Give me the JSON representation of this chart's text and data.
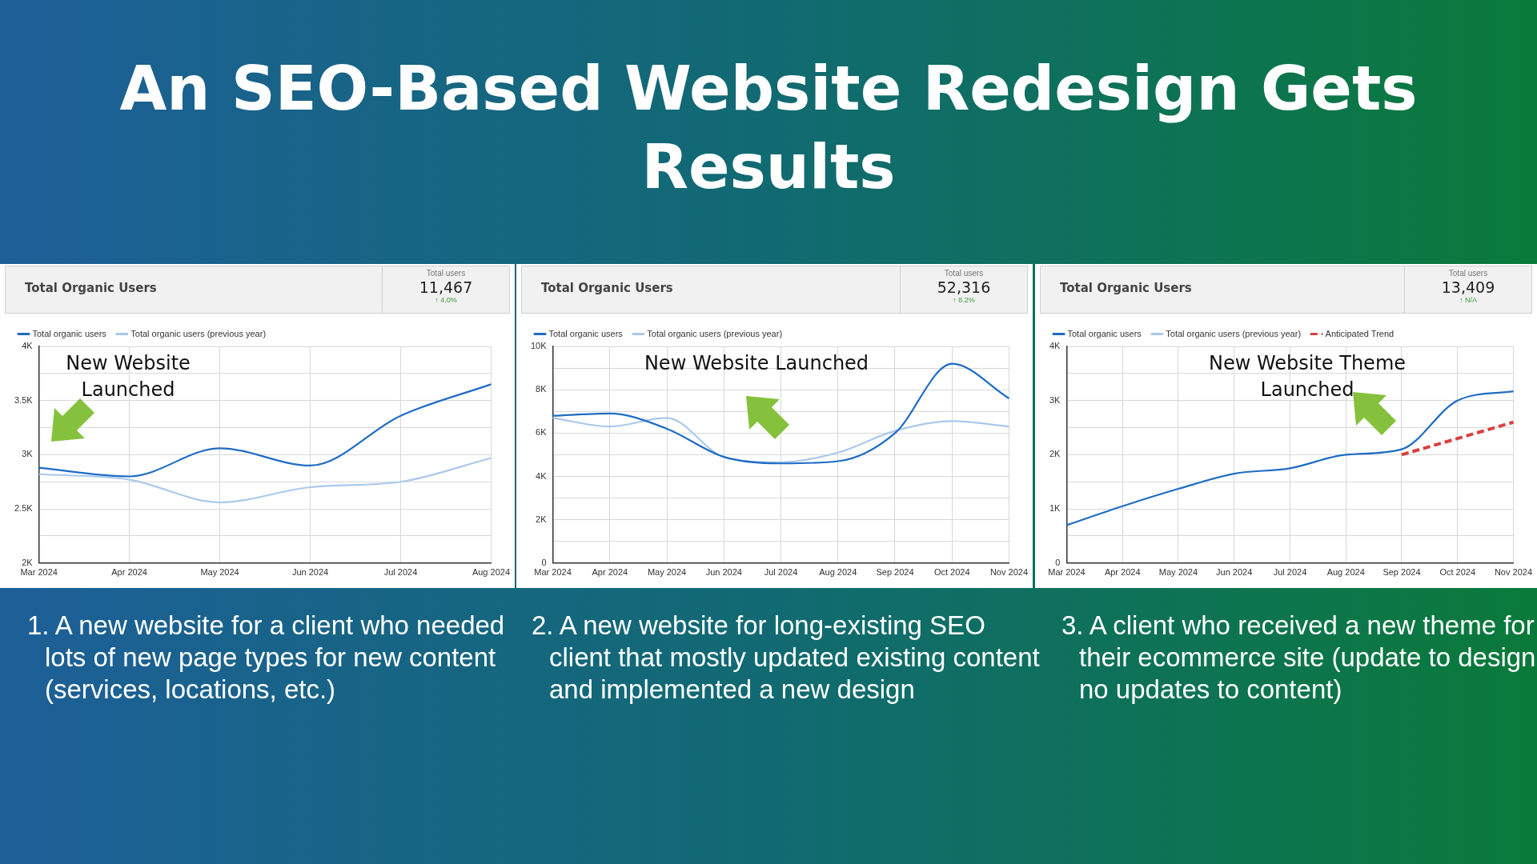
{
  "chart_data": [
    {
      "type": "line",
      "title": "An SEO-Based Website Redesign Gets Results",
      "subtitle": "Total Organic Users",
      "categories": [
        "Mar 2024",
        "Apr 2024",
        "May 2024",
        "Jun 2024",
        "Jul 2024",
        "Aug 2024"
      ],
      "series": [
        {
          "name": "Total organic users",
          "color": "#1f6cc4",
          "values": [
            2880,
            2800,
            3060,
            2900,
            3360,
            3650
          ]
        },
        {
          "name": "Total organic users (previous year)",
          "color": "#a9c9ec",
          "values": [
            2820,
            2770,
            2560,
            2700,
            2750,
            2970
          ]
        }
      ],
      "ylim": [
        2000,
        4000
      ],
      "yticks": [
        {
          "value": 2000,
          "label": "2K"
        },
        {
          "value": 2250,
          "label": null
        },
        {
          "value": 2500,
          "label": "2.5K"
        },
        {
          "value": 2750,
          "label": null
        },
        {
          "value": 3000,
          "label": "3K"
        },
        {
          "value": 3250,
          "label": null
        },
        {
          "value": 3500,
          "label": "3.5K"
        },
        {
          "value": 3750,
          "label": null
        },
        {
          "value": 4000,
          "label": "4K"
        }
      ],
      "grid": true,
      "legend": "top left",
      "marker": "none",
      "annotations": [
        "Total users",
        "11,467",
        "↑ 4.0%",
        "New Website Launched",
        "1. A new website for a client who needed lots of new page types for new content (services, locations, etc.)"
      ]
    },
    {
      "type": "line",
      "subtitle": "Total Organic Users",
      "categories": [
        "Mar 2024",
        "Apr 2024",
        "May 2024",
        "Jun 2024",
        "Jul 2024",
        "Aug 2024",
        "Sep 2024",
        "Oct 2024",
        "Nov 2024"
      ],
      "series": [
        {
          "name": "Total organic users",
          "color": "#1f6cc4",
          "values": [
            6800,
            6900,
            6200,
            4900,
            4600,
            4700,
            6000,
            9200,
            7600
          ]
        },
        {
          "name": "Total organic users (previous year)",
          "color": "#a9c9ec",
          "values": [
            6700,
            6300,
            6700,
            4900,
            4650,
            5100,
            6100,
            6550,
            6300
          ]
        }
      ],
      "ylim": [
        0,
        10000
      ],
      "yticks": [
        {
          "value": 0,
          "label": "0"
        },
        {
          "value": 1000,
          "label": null
        },
        {
          "value": 2000,
          "label": "2K"
        },
        {
          "value": 3000,
          "label": null
        },
        {
          "value": 4000,
          "label": "4K"
        },
        {
          "value": 5000,
          "label": null
        },
        {
          "value": 6000,
          "label": "6K"
        },
        {
          "value": 7000,
          "label": null
        },
        {
          "value": 8000,
          "label": "8K"
        },
        {
          "value": 9000,
          "label": null
        },
        {
          "value": 10000,
          "label": "10K"
        }
      ],
      "grid": true,
      "legend": "top left",
      "marker": "none",
      "annotations": [
        "Total users",
        "52,316",
        "↑ 8.2%",
        "New Website Launched",
        "2. A new website for long-existing SEO client that mostly updated existing content and implemented a new design"
      ]
    },
    {
      "type": "line",
      "subtitle": "Total Organic Users",
      "categories": [
        "Mar 2024",
        "Apr 2024",
        "May 2024",
        "Jun 2024",
        "Jul 2024",
        "Aug 2024",
        "Sep 2024",
        "Oct 2024",
        "Nov 2024"
      ],
      "series": [
        {
          "name": "Total organic users",
          "color": "#1f6cc4",
          "values": [
            700,
            1050,
            1370,
            1650,
            1750,
            2000,
            2100,
            3000,
            3170
          ]
        },
        {
          "name": "Total organic users (previous year)",
          "color": "#a9c9ec",
          "values": [
            null,
            null,
            null,
            null,
            null,
            null,
            null,
            null,
            null
          ]
        },
        {
          "name": "Anticipated Trend",
          "color": "#d9403f",
          "line_style": "dashed",
          "values": [
            null,
            null,
            null,
            null,
            null,
            null,
            2000,
            2300,
            2600
          ]
        }
      ],
      "ylim": [
        0,
        4000
      ],
      "yticks": [
        {
          "value": 0,
          "label": "0"
        },
        {
          "value": 500,
          "label": null
        },
        {
          "value": 1000,
          "label": "1K"
        },
        {
          "value": 1500,
          "label": null
        },
        {
          "value": 2000,
          "label": "2K"
        },
        {
          "value": 2500,
          "label": null
        },
        {
          "value": 3000,
          "label": "3K"
        },
        {
          "value": 3500,
          "label": null
        },
        {
          "value": 4000,
          "label": "4K"
        }
      ],
      "grid": true,
      "legend": "top left",
      "marker": "none",
      "annotations": [
        "Total users",
        "13,409",
        "↑ N/A",
        "New Website Theme Launched",
        "3. A client who received a new theme for their ecommerce site (update to design, no updates to content)"
      ]
    }
  ]
}
